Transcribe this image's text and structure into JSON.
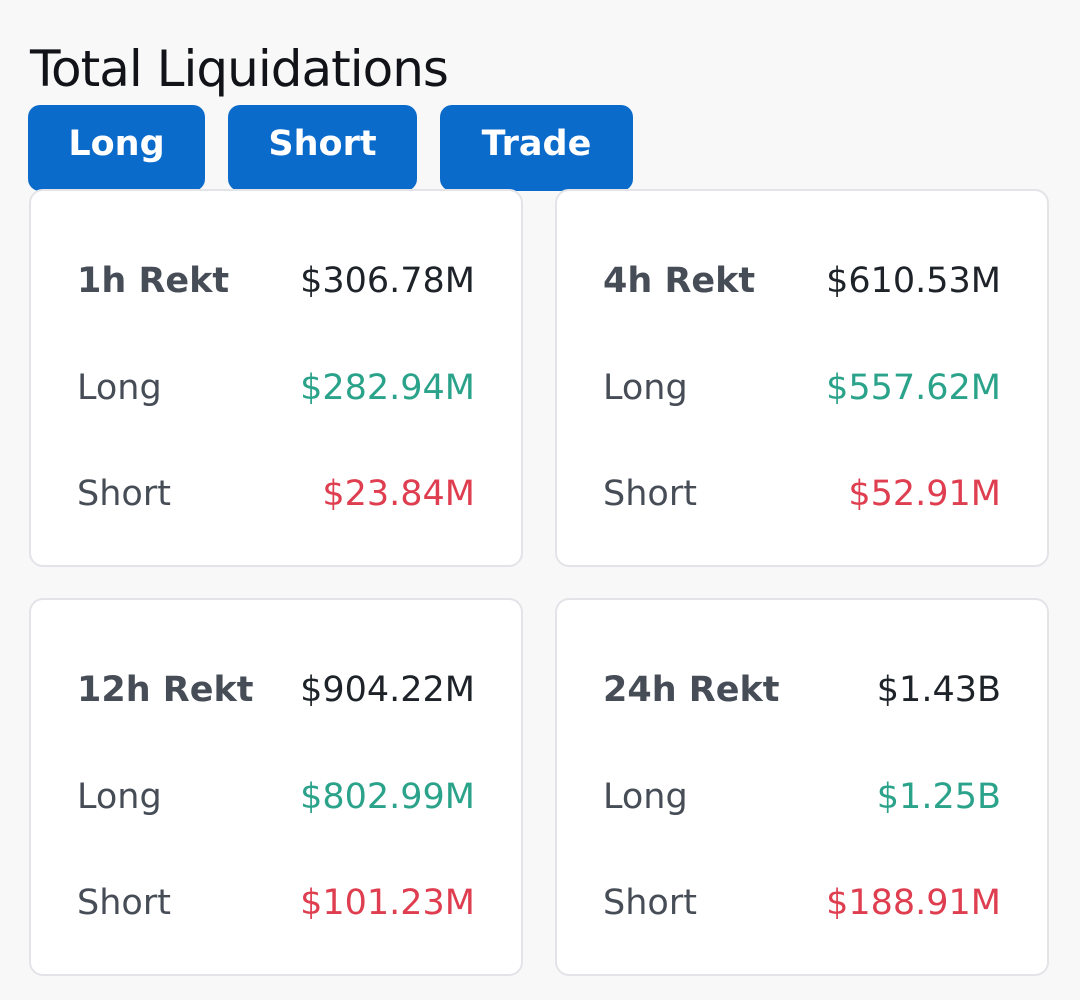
{
  "header": {
    "title": "Total Liquidations"
  },
  "tabs": [
    {
      "label": "Long"
    },
    {
      "label": "Short"
    },
    {
      "label": "Trade"
    }
  ],
  "colors": {
    "accent": "#0b6bcb",
    "long": "#2ba38a",
    "short": "#de3e4f"
  },
  "cards": [
    {
      "period": "1h Rekt",
      "total": "$306.78M",
      "long_label": "Long",
      "long": "$282.94M",
      "short_label": "Short",
      "short": "$23.84M"
    },
    {
      "period": "4h Rekt",
      "total": "$610.53M",
      "long_label": "Long",
      "long": "$557.62M",
      "short_label": "Short",
      "short": "$52.91M"
    },
    {
      "period": "12h Rekt",
      "total": "$904.22M",
      "long_label": "Long",
      "long": "$802.99M",
      "short_label": "Short",
      "short": "$101.23M"
    },
    {
      "period": "24h Rekt",
      "total": "$1.43B",
      "long_label": "Long",
      "long": "$1.25B",
      "short_label": "Short",
      "short": "$188.91M"
    }
  ]
}
